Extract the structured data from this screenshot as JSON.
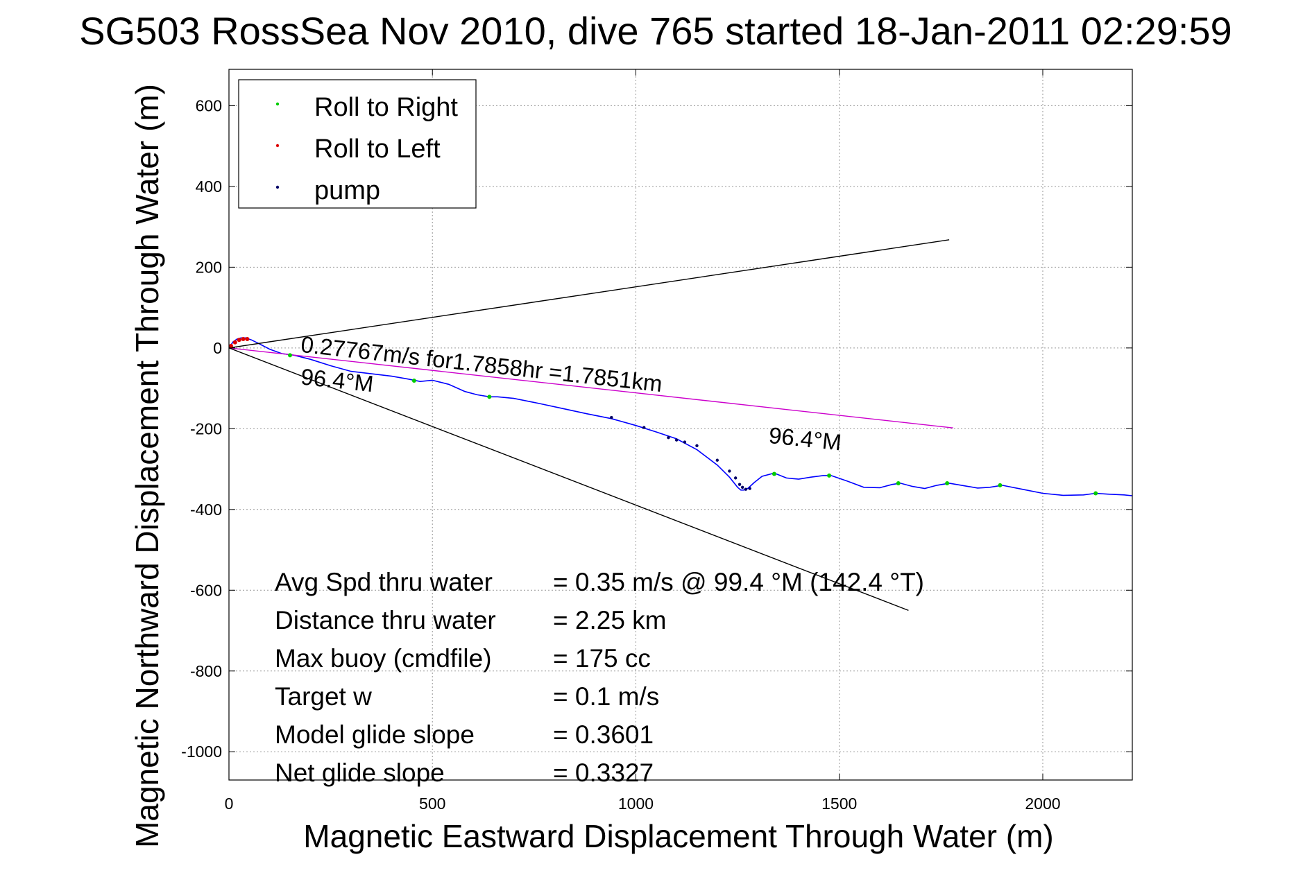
{
  "chart_data": {
    "type": "line",
    "title": "SG503 RossSea Nov 2010, dive 765 started 18-Jan-2011 02:29:59",
    "xlabel": "Magnetic Eastward Displacement Through Water (m)",
    "ylabel": "Magnetic Northward Displacement Through Water (m)",
    "xlim": [
      0,
      2220
    ],
    "ylim": [
      -1070,
      690
    ],
    "xticks": [
      0,
      500,
      1000,
      1500,
      2000
    ],
    "yticks": [
      600,
      400,
      200,
      0,
      -200,
      -400,
      -600,
      -800,
      -1000
    ],
    "grid": true,
    "legend_position": "top-left",
    "legend": [
      {
        "label": "Roll to Right",
        "color": "#00cc00"
      },
      {
        "label": "Roll to Left",
        "color": "#dd0000"
      },
      {
        "label": "pump",
        "color": "#000066"
      }
    ],
    "series": [
      {
        "style": "track",
        "color": "#0000ff",
        "x": [
          0,
          10,
          20,
          30,
          40,
          55,
          75,
          100,
          130,
          160,
          200,
          250,
          300,
          350,
          400,
          440,
          470,
          500,
          540,
          580,
          610,
          640,
          660,
          700,
          760,
          820,
          880,
          940,
          1000,
          1050,
          1100,
          1150,
          1200,
          1230,
          1250,
          1258,
          1265,
          1275,
          1290,
          1310,
          1340,
          1370,
          1400,
          1430,
          1460,
          1480,
          1520,
          1560,
          1600,
          1630,
          1650,
          1680,
          1710,
          1740,
          1770,
          1800,
          1840,
          1870,
          1900,
          1950,
          2000,
          2050,
          2100,
          2130,
          2160,
          2200,
          2220
        ],
        "y": [
          0,
          15,
          22,
          25,
          25,
          20,
          10,
          -3,
          -14,
          -18,
          -28,
          -44,
          -58,
          -64,
          -70,
          -77,
          -83,
          -80,
          -90,
          -108,
          -116,
          -121,
          -121,
          -125,
          -137,
          -150,
          -163,
          -175,
          -192,
          -208,
          -225,
          -252,
          -290,
          -320,
          -345,
          -352,
          -352,
          -348,
          -334,
          -318,
          -310,
          -322,
          -325,
          -320,
          -316,
          -316,
          -330,
          -345,
          -346,
          -338,
          -335,
          -343,
          -348,
          -340,
          -335,
          -340,
          -347,
          -345,
          -340,
          -350,
          -360,
          -365,
          -364,
          -360,
          -362,
          -364,
          -366
        ]
      },
      {
        "style": "heading",
        "color": "#cc00cc",
        "x": [
          0,
          1780
        ],
        "y": [
          0,
          -198
        ]
      },
      {
        "style": "reference",
        "color": "#000000",
        "x": [
          0,
          1770
        ],
        "y": [
          0,
          268
        ]
      },
      {
        "style": "reference",
        "color": "#000000",
        "x": [
          0,
          1670
        ],
        "y": [
          0,
          -650
        ]
      }
    ],
    "markers": [
      {
        "type": "roll_right",
        "x": [
          150,
          455,
          640,
          1340,
          1475,
          1645,
          1765,
          1895,
          2130
        ],
        "y": [
          -18,
          -81,
          -121,
          -312,
          -316,
          -335,
          -335,
          -340,
          -360
        ]
      },
      {
        "type": "roll_left",
        "x": [
          5,
          15,
          25,
          35,
          45
        ],
        "y": [
          5,
          14,
          20,
          22,
          22
        ]
      },
      {
        "type": "pump",
        "x": [
          940,
          1020,
          1080,
          1100,
          1120,
          1150,
          1200,
          1230,
          1245,
          1255,
          1262,
          1270,
          1280
        ],
        "y": [
          -172,
          -197,
          -222,
          -228,
          -233,
          -242,
          -278,
          -305,
          -322,
          -338,
          -345,
          -350,
          -348
        ]
      }
    ],
    "annotations": {
      "heading_text": "0.27767m/s for1.7858hr =1.7851km",
      "heading_label_1": "96.4°M",
      "heading_label_2": "96.4°M"
    },
    "stats": [
      {
        "label": "Avg Spd thru water",
        "value": "=  0.35 m/s @  99.4 °M (142.4 °T)"
      },
      {
        "label": "Distance thru water",
        "value": "=  2.25 km"
      },
      {
        "label": "Max buoy (cmdfile)",
        "value": "= 175 cc"
      },
      {
        "label": "Target w",
        "value": "= 0.1 m/s"
      },
      {
        "label": "Model glide slope",
        "value": "= 0.3601"
      },
      {
        "label": "Net glide slope",
        "value": "= 0.3327"
      }
    ]
  }
}
